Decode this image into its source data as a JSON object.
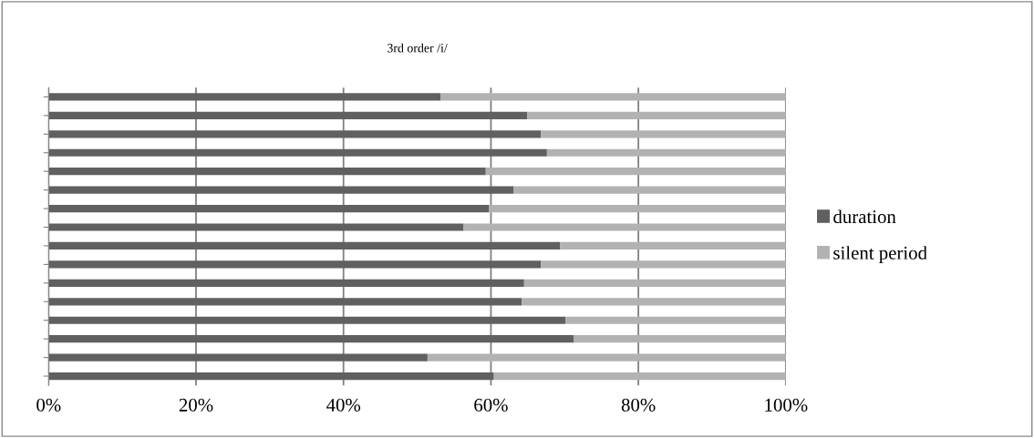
{
  "chart_data": {
    "type": "bar",
    "orientation": "horizontal",
    "stacked": true,
    "title": "3rd order /i/",
    "categories": [
      null,
      null,
      null,
      null,
      null,
      null,
      null,
      null,
      null,
      null,
      null,
      null,
      null,
      null,
      null,
      null
    ],
    "series": [
      {
        "name": "duration",
        "color": "#606060",
        "values": [
          53.2,
          64.9,
          66.8,
          67.6,
          59.3,
          63.1,
          59.7,
          56.3,
          69.4,
          66.8,
          64.5,
          64.2,
          70.1,
          71.2,
          51.4,
          60.4
        ]
      },
      {
        "name": "silent period",
        "color": "#b2b2b2",
        "values": [
          46.8,
          35.1,
          33.2,
          32.4,
          40.7,
          36.9,
          40.3,
          43.7,
          30.6,
          33.2,
          35.5,
          35.8,
          29.9,
          28.8,
          48.6,
          39.6
        ]
      }
    ],
    "xlim": [
      0,
      100
    ],
    "xticks": [
      {
        "value": 0,
        "label": "0%"
      },
      {
        "value": 20,
        "label": "20%"
      },
      {
        "value": 40,
        "label": "40%"
      },
      {
        "value": 60,
        "label": "60%"
      },
      {
        "value": 80,
        "label": "80%"
      },
      {
        "value": 100,
        "label": "100%"
      }
    ],
    "grid": "x",
    "legend": "right"
  }
}
